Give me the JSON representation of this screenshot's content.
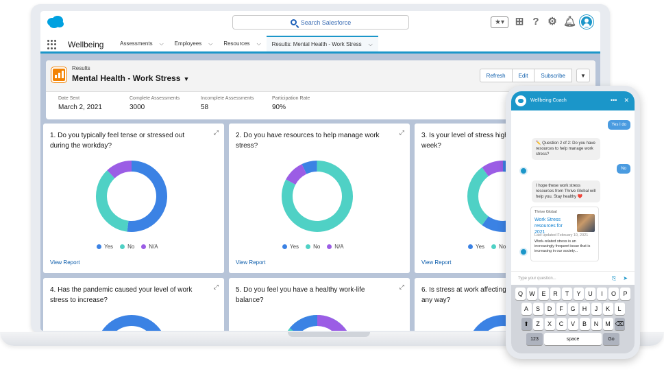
{
  "header": {
    "search_placeholder": "Search Salesforce",
    "fav_label": "★▾"
  },
  "nav": {
    "app_name": "Wellbeing",
    "items": [
      {
        "label": "Assessments"
      },
      {
        "label": "Employees"
      },
      {
        "label": "Resources"
      },
      {
        "label": "Results: Mental Health - Work Stress"
      }
    ]
  },
  "report": {
    "object_label": "Results",
    "title": "Mental Health - Work Stress",
    "buttons": {
      "refresh": "Refresh",
      "edit": "Edit",
      "subscribe": "Subscribe"
    },
    "stats": [
      {
        "label": "Date Sent",
        "value": "March 2, 2021"
      },
      {
        "label": "Complete Assessments",
        "value": "3000"
      },
      {
        "label": "Incomplete Assessments",
        "value": "58"
      },
      {
        "label": "Participation Rate",
        "value": "90%"
      }
    ]
  },
  "colors": {
    "yes": "#3b82e4",
    "no": "#4fd1c5",
    "na": "#9b5de5",
    "brand": "#1b96c9"
  },
  "legend": {
    "yes": "Yes",
    "no": "No",
    "na": "N/A"
  },
  "view_report": "View Report",
  "cards": [
    {
      "question": "1. Do you typically feel tense or stressed out during the workday?",
      "yes": 0.52,
      "no": 0.36,
      "na": 0.12
    },
    {
      "question": "2. Do you have resources to help manage work stress?",
      "yes": 0.07,
      "no": 0.83,
      "na": 0.1
    },
    {
      "question": "3. Is your level of stress high week?",
      "yes": 0.6,
      "no": 0.3,
      "na": 0.1
    },
    {
      "question": "4. Has the pandemic caused your level of work stress to increase?"
    },
    {
      "question": "5. Do you feel you have a healthy work-life balance?"
    },
    {
      "question": "6. Is stress at work affecting any way?"
    }
  ],
  "phone": {
    "coach_title": "Wellbeing Coach",
    "msg_yes": "Yes I do",
    "msg_q2": "✏️ Question 2 of 2: Do you have resources to help manage work stress?",
    "msg_no": "No",
    "msg_hope": "I hope these work stress resources from Thrive Global will help you. Stay healthy ❤️",
    "res_source": "Thrive Global",
    "res_title": "Work Stress resources for 2021",
    "res_updated": "Last updated February 10, 2021",
    "res_body": "Work-related stress is an increasingly frequent issue that is increasing in our society...",
    "input_placeholder": "Type your question...",
    "kb_row1": [
      "Q",
      "W",
      "E",
      "R",
      "T",
      "Y",
      "U",
      "I",
      "O",
      "P"
    ],
    "kb_row2": [
      "A",
      "S",
      "D",
      "F",
      "G",
      "H",
      "J",
      "K",
      "L"
    ],
    "kb_row3": [
      "Z",
      "X",
      "C",
      "V",
      "B",
      "N",
      "M"
    ],
    "kb_123": "123",
    "kb_space": "space",
    "kb_go": "Go"
  }
}
